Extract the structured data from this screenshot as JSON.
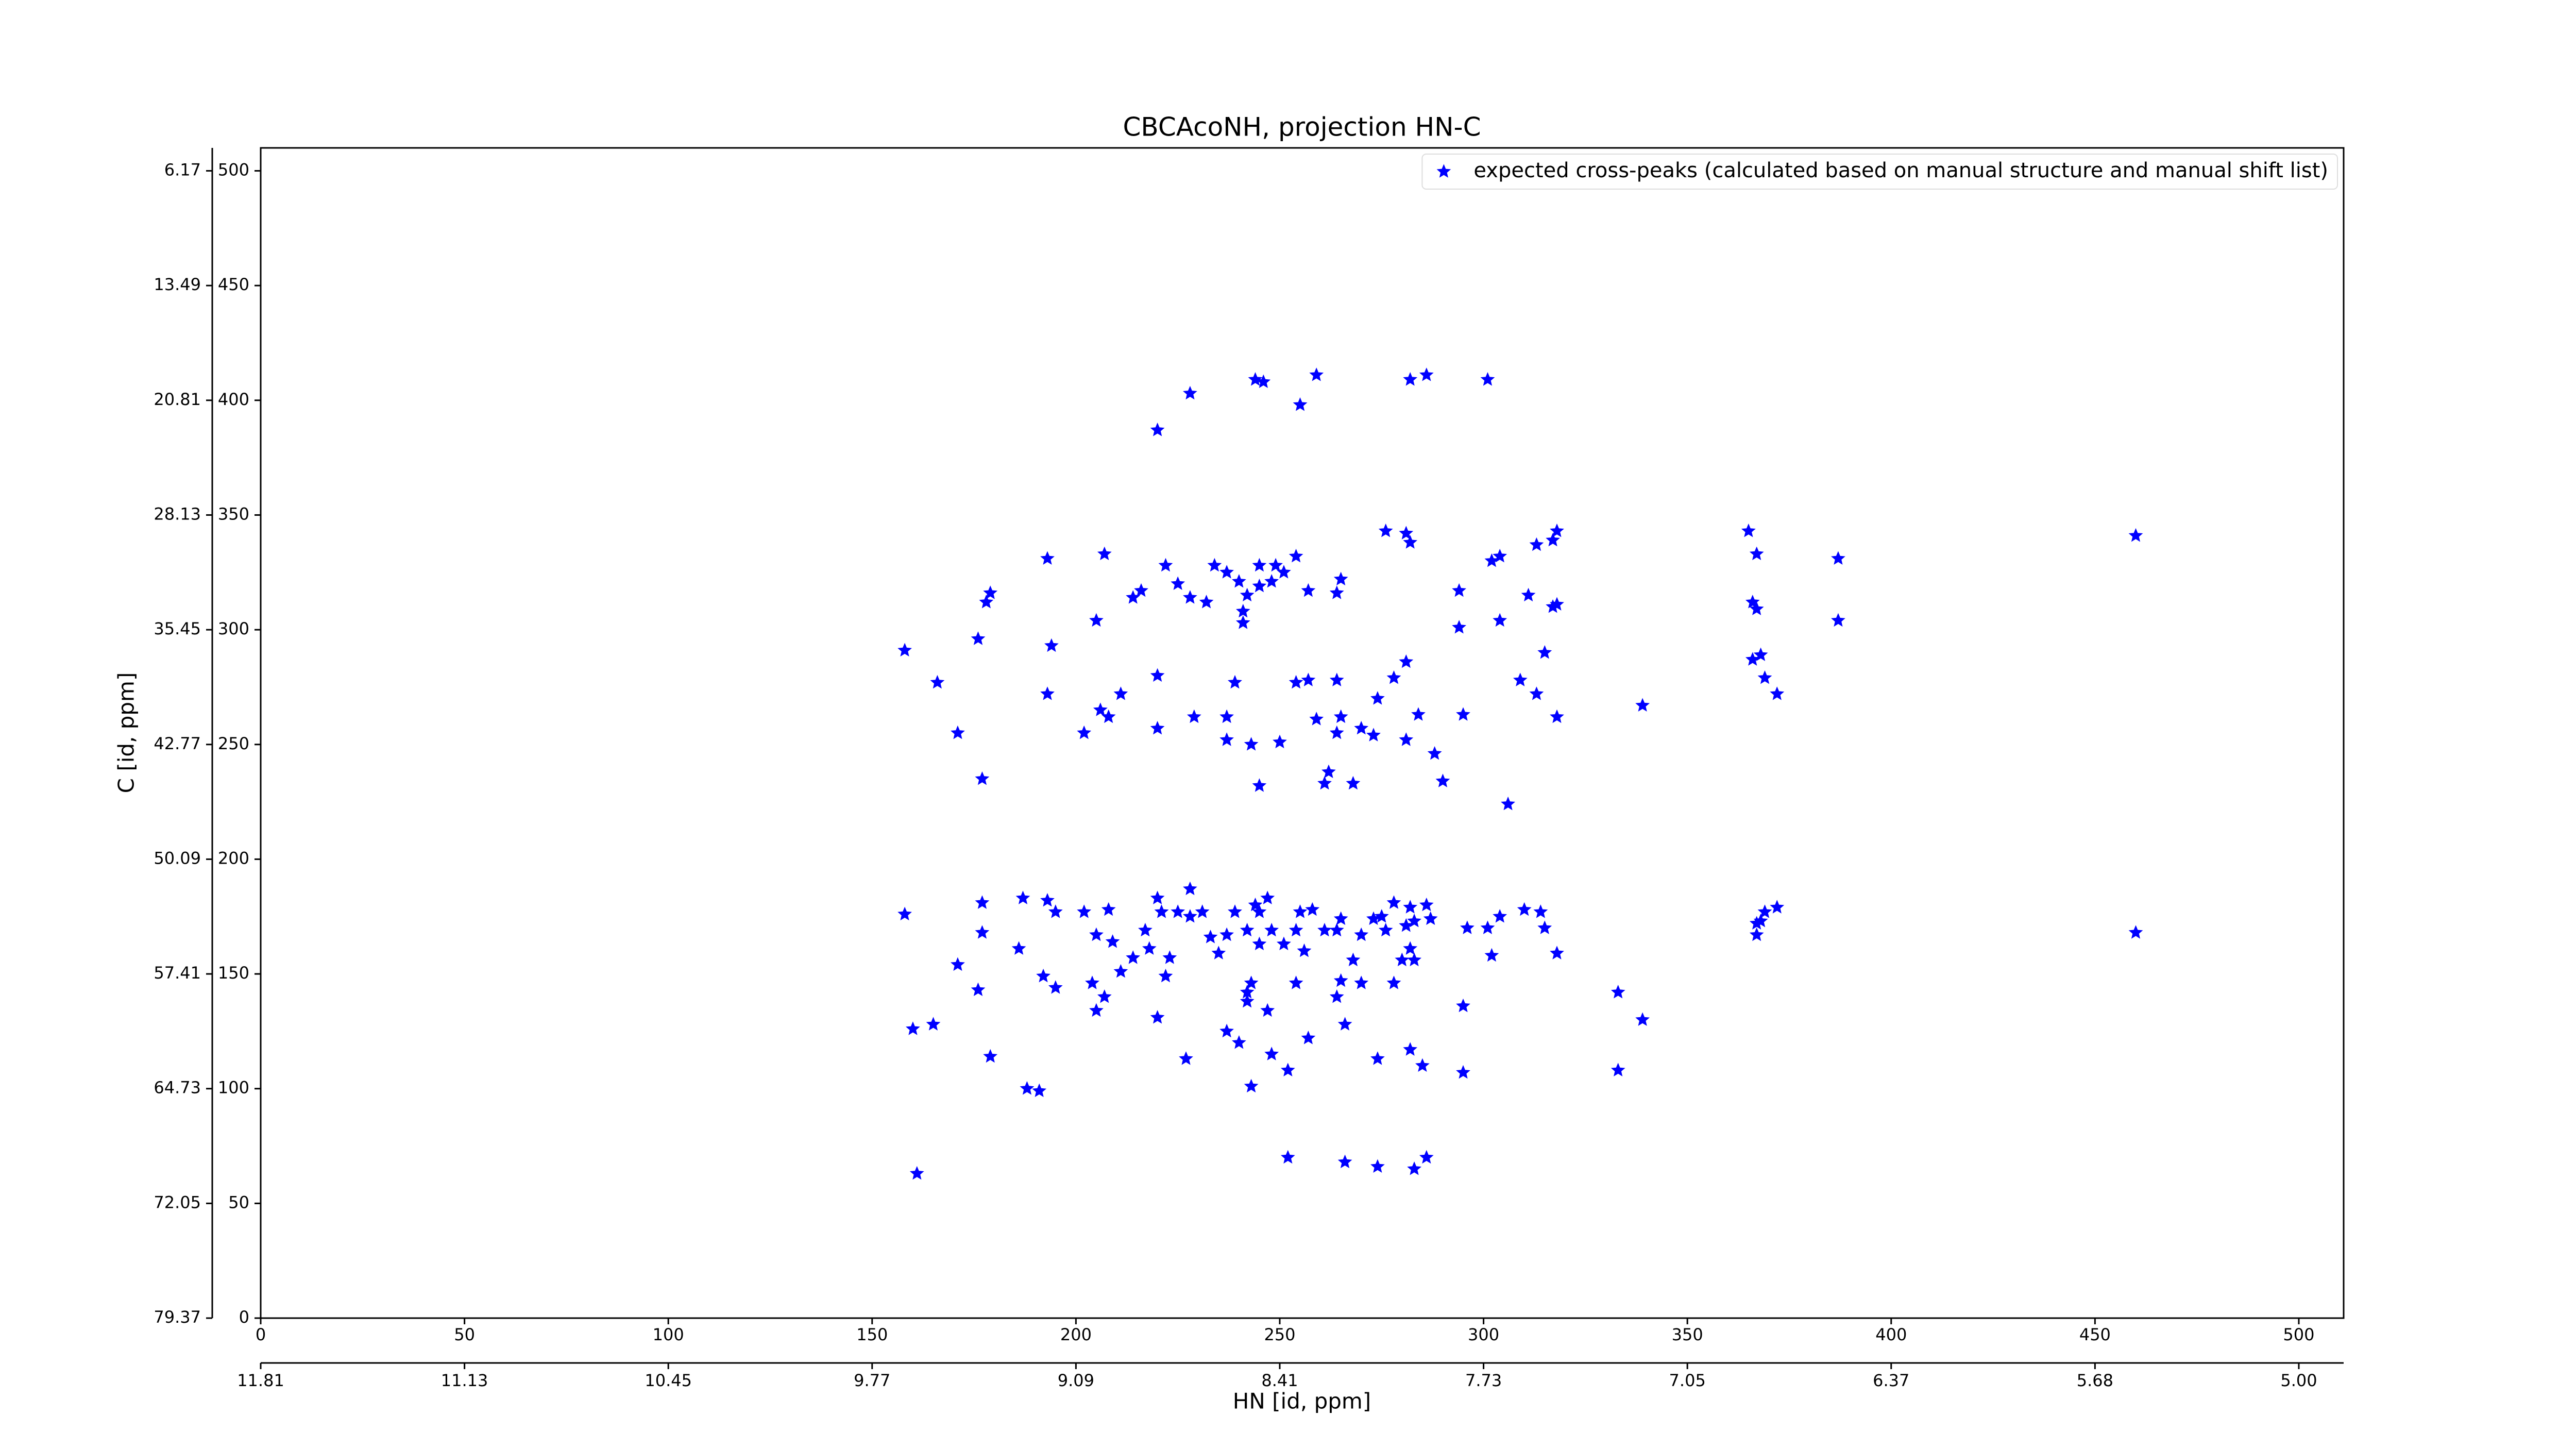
{
  "chart_data": {
    "type": "scatter",
    "title": "CBCAcoNH, projection HN-C",
    "xlabel": "HN [id, ppm]",
    "ylabel": "C [id, ppm]",
    "xlim": [
      0,
      511
    ],
    "ylim": [
      0,
      510
    ],
    "xticks": [
      0,
      50,
      100,
      150,
      200,
      250,
      300,
      350,
      400,
      450,
      500
    ],
    "yticks": [
      0,
      50,
      100,
      150,
      200,
      250,
      300,
      350,
      400,
      450,
      500
    ],
    "x2ticks": [
      {
        "value": 0,
        "label": "11.81"
      },
      {
        "value": 50,
        "label": "11.13"
      },
      {
        "value": 100,
        "label": "10.45"
      },
      {
        "value": 150,
        "label": "9.77"
      },
      {
        "value": 200,
        "label": "9.09"
      },
      {
        "value": 250,
        "label": "8.41"
      },
      {
        "value": 300,
        "label": "7.73"
      },
      {
        "value": 350,
        "label": "7.05"
      },
      {
        "value": 400,
        "label": "6.37"
      },
      {
        "value": 450,
        "label": "5.68"
      },
      {
        "value": 500,
        "label": "5.00"
      }
    ],
    "y2ticks": [
      {
        "value": 500,
        "label": "6.17"
      },
      {
        "value": 450,
        "label": "13.49"
      },
      {
        "value": 400,
        "label": "20.81"
      },
      {
        "value": 350,
        "label": "28.13"
      },
      {
        "value": 300,
        "label": "35.45"
      },
      {
        "value": 250,
        "label": "42.77"
      },
      {
        "value": 200,
        "label": "50.09"
      },
      {
        "value": 150,
        "label": "57.41"
      },
      {
        "value": 100,
        "label": "64.73"
      },
      {
        "value": 50,
        "label": "72.05"
      },
      {
        "value": 0,
        "label": "79.37"
      }
    ],
    "legend": "upper right",
    "series": [
      {
        "name": "expected cross-peaks (calculated based on manual structure and manual shift list)",
        "color": "#0000ff",
        "x": [
          228,
          244,
          246,
          259,
          255,
          282,
          286,
          301,
          220,
          207,
          193,
          222,
          216,
          214,
          225,
          228,
          232,
          234,
          237,
          240,
          242,
          245,
          245,
          249,
          248,
          251,
          254,
          257,
          241,
          241,
          264,
          265,
          276,
          281,
          282,
          205,
          179,
          178,
          176,
          158,
          194,
          166,
          171,
          193,
          206,
          211,
          202,
          208,
          220,
          220,
          229,
          239,
          237,
          237,
          243,
          250,
          245,
          254,
          257,
          259,
          264,
          265,
          264,
          262,
          261,
          268,
          274,
          273,
          270,
          281,
          278,
          281,
          284,
          288,
          290,
          295,
          294,
          294,
          302,
          304,
          304,
          313,
          317,
          318,
          311,
          317,
          318,
          315,
          309,
          313,
          318,
          306,
          339,
          365,
          367,
          366,
          367,
          366,
          368,
          369,
          372,
          387,
          387,
          460,
          177,
          158,
          177,
          177,
          186,
          187,
          193,
          195,
          202,
          208,
          205,
          209,
          211,
          214,
          217,
          218,
          220,
          221,
          223,
          222,
          225,
          228,
          228,
          231,
          233,
          235,
          237,
          239,
          242,
          244,
          245,
          245,
          247,
          248,
          251,
          254,
          255,
          256,
          258,
          261,
          264,
          265,
          268,
          270,
          273,
          275,
          276,
          278,
          281,
          282,
          283,
          286,
          287,
          282,
          283,
          280,
          296,
          301,
          304,
          302,
          310,
          314,
          315,
          318,
          367,
          368,
          369,
          372,
          367,
          460,
          171,
          176,
          192,
          195,
          204,
          205,
          207,
          220,
          227,
          237,
          240,
          243,
          242,
          242,
          247,
          248,
          252,
          254,
          257,
          265,
          264,
          266,
          270,
          274,
          278,
          282,
          285,
          295,
          295,
          333,
          333,
          339,
          160,
          165,
          179,
          188,
          191,
          243,
          252,
          266,
          274,
          283,
          286,
          161
        ],
        "values": [
          403,
          409,
          408,
          411,
          398,
          409,
          411,
          409,
          387,
          333,
          331,
          328,
          317,
          314,
          320,
          314,
          312,
          328,
          325,
          321,
          315,
          319,
          328,
          328,
          321,
          325,
          332,
          317,
          308,
          303,
          316,
          322,
          343,
          342,
          338,
          304,
          316,
          312,
          296,
          291,
          293,
          277,
          255,
          272,
          265,
          272,
          255,
          262,
          280,
          257,
          262,
          277,
          262,
          252,
          250,
          251,
          232,
          277,
          278,
          261,
          278,
          262,
          255,
          238,
          233,
          233,
          270,
          254,
          257,
          286,
          279,
          252,
          263,
          246,
          234,
          263,
          317,
          301,
          330,
          332,
          304,
          337,
          339,
          343,
          315,
          310,
          311,
          290,
          278,
          272,
          262,
          224,
          267,
          343,
          333,
          312,
          309,
          287,
          289,
          279,
          272,
          331,
          304,
          341,
          235,
          176,
          181,
          168,
          161,
          183,
          182,
          177,
          177,
          178,
          167,
          164,
          151,
          157,
          169,
          161,
          183,
          177,
          157,
          149,
          177,
          187,
          175,
          177,
          166,
          159,
          167,
          177,
          169,
          180,
          163,
          177,
          183,
          169,
          163,
          169,
          177,
          160,
          178,
          169,
          169,
          174,
          156,
          167,
          174,
          175,
          169,
          181,
          171,
          179,
          173,
          180,
          174,
          161,
          156,
          156,
          170,
          170,
          175,
          158,
          178,
          177,
          170,
          159,
          172,
          173,
          177,
          179,
          167,
          168,
          154,
          143,
          149,
          144,
          146,
          134,
          140,
          131,
          113,
          125,
          120,
          146,
          142,
          138,
          134,
          115,
          108,
          146,
          122,
          147,
          140,
          128,
          146,
          113,
          146,
          117,
          110,
          136,
          107,
          142,
          108,
          130,
          126,
          128,
          114,
          100,
          99,
          101,
          70,
          68,
          66,
          65,
          70,
          63
        ]
      }
    ]
  }
}
